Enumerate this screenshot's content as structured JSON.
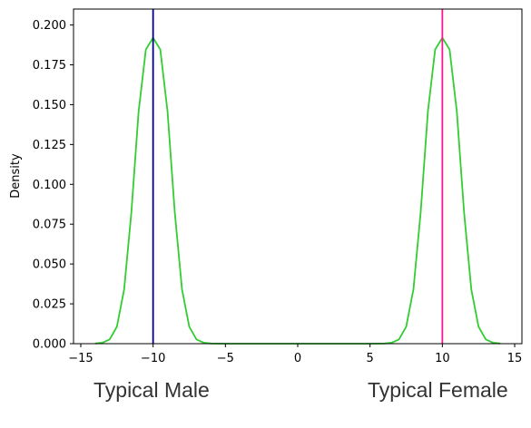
{
  "chart_data": {
    "type": "line",
    "title": "",
    "xlabel": "",
    "ylabel": "Density",
    "xlim": [
      -15.5,
      15.5
    ],
    "ylim": [
      0,
      0.21
    ],
    "x_ticks": [
      -15,
      -10,
      -5,
      0,
      5,
      10,
      15
    ],
    "x_tick_labels": [
      "−15",
      "−10",
      "−5",
      "0",
      "5",
      "10",
      "15"
    ],
    "y_ticks": [
      0,
      0.025,
      0.05,
      0.075,
      0.1,
      0.125,
      0.15,
      0.175,
      0.2
    ],
    "y_tick_labels": [
      "0.000",
      "0.025",
      "0.050",
      "0.075",
      "0.100",
      "0.125",
      "0.150",
      "0.175",
      "0.200"
    ],
    "grid": false,
    "legend": "none",
    "series": [
      {
        "color": "#32cd32",
        "x": [
          -14,
          -13.5,
          -13,
          -12.5,
          -12,
          -11.5,
          -11,
          -10.5,
          -10,
          -9.5,
          -9,
          -8.5,
          -8,
          -7.5,
          -7,
          -6.5,
          -6,
          -5,
          0,
          5,
          6,
          6.5,
          7,
          7.5,
          8,
          8.5,
          9,
          9.5,
          10,
          10.5,
          11,
          11.5,
          12,
          12.5,
          13,
          13.5,
          14
        ],
        "y": [
          0.0001,
          0.0006,
          0.0027,
          0.0107,
          0.0341,
          0.0824,
          0.1457,
          0.1846,
          0.192,
          0.1846,
          0.1457,
          0.0824,
          0.0341,
          0.0107,
          0.0027,
          0.0006,
          0.0001,
          0,
          0,
          0,
          0.0001,
          0.0006,
          0.0027,
          0.0107,
          0.0341,
          0.0824,
          0.1457,
          0.1846,
          0.192,
          0.1846,
          0.1457,
          0.0824,
          0.0341,
          0.0107,
          0.0027,
          0.0006,
          0.0001
        ]
      }
    ],
    "vlines": [
      {
        "x": -10,
        "color": "#00008b"
      },
      {
        "x": 10,
        "color": "#ff1493"
      }
    ]
  },
  "captions": {
    "left": "Typical Male",
    "right": "Typical Female"
  }
}
